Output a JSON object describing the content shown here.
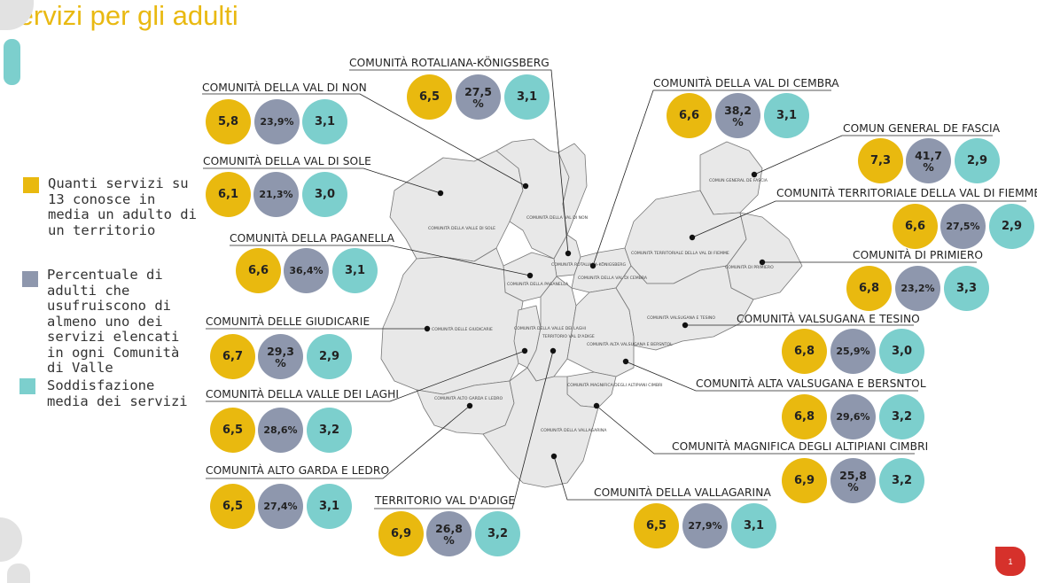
{
  "title": "Servizi per gli adulti",
  "colors": {
    "yellow": "#e9b90f",
    "grey": "#8e97ad",
    "teal": "#7ccfcd",
    "title": "#e9b911"
  },
  "legend": [
    {
      "text": "Quanti servizi su 13 conosce in media un adulto di un territorio",
      "color": "#e9b90f"
    },
    {
      "text": "Percentuale di adulti che usufruiscono di almeno uno dei servizi elencati in ogni Comunità di Valle",
      "color": "#8e97ad"
    },
    {
      "text": "Soddisfazione media dei servizi",
      "color": "#7ccfcd"
    }
  ],
  "map_labels": [
    "COMUNITÀ DELLA VALLE DI SOLE",
    "COMUNITÀ DELLA VAL DI NON",
    "COMUNITÀ ROTALIANA-KÖNIGSBERG",
    "COMUNITÀ DELLA PAGANELLA",
    "COMUNITÀ DELLA VAL DI CEMBRA",
    "COMUN GENERAL DE FASCIA",
    "COMUNITÀ TERRITORIALE DELLA VAL DI FIEMME",
    "COMUNITÀ DI PRIMIERO",
    "COMUNITÀ DELLE GIUDICARIE",
    "COMUNITÀ DELLA VALLE DEI LAGHI",
    "TERRITORIO VAL D'ADIGE",
    "COMUNITÀ ALTA VALSUGANA E BERSNTOL",
    "COMUNITÀ VALSUGANA E TESINO",
    "COMUNITÀ ALTO GARDA E LEDRO",
    "COMUNITÀ MAGNIFICA DEGLI ALTIPIANI CIMBRI",
    "COMUNITÀ DELLA VALLAGARINA"
  ],
  "communities": [
    {
      "name": "COMUNITÀ DELLA VAL DI NON",
      "known": "5,8",
      "usage": "23,9%",
      "satisfaction": "3,1"
    },
    {
      "name": "COMUNITÀ ROTALIANA-KÖNIGSBERG",
      "known": "6,5",
      "usage": "27,5 %",
      "satisfaction": "3,1"
    },
    {
      "name": "COMUNITÀ DELLA VAL DI CEMBRA",
      "known": "6,6",
      "usage": "38,2 %",
      "satisfaction": "3,1"
    },
    {
      "name": "COMUN GENERAL DE FASCIA",
      "known": "7,3",
      "usage": "41,7 %",
      "satisfaction": "2,9"
    },
    {
      "name": "COMUNITÀ DELLA VAL DI SOLE",
      "known": "6,1",
      "usage": "21,3%",
      "satisfaction": "3,0"
    },
    {
      "name": "COMUNITÀ TERRITORIALE DELLA VAL DI FIEMME",
      "known": "6,6",
      "usage": "27,5%",
      "satisfaction": "2,9"
    },
    {
      "name": "COMUNITÀ DELLA PAGANELLA",
      "known": "6,6",
      "usage": "36,4%",
      "satisfaction": "3,1"
    },
    {
      "name": "COMUNITÀ DI PRIMIERO",
      "known": "6,8",
      "usage": "23,2%",
      "satisfaction": "3,3"
    },
    {
      "name": "COMUNITÀ DELLE GIUDICARIE",
      "known": "6,7",
      "usage": "29,3 %",
      "satisfaction": "2,9"
    },
    {
      "name": "COMUNITÀ VALSUGANA E TESINO",
      "known": "6,8",
      "usage": "25,9%",
      "satisfaction": "3,0"
    },
    {
      "name": "COMUNITÀ ALTA VALSUGANA E BERSNTOL",
      "known": "6,8",
      "usage": "29,6%",
      "satisfaction": "3,2"
    },
    {
      "name": "COMUNITÀ DELLA VALLE DEI LAGHI",
      "known": "6,5",
      "usage": "28,6%",
      "satisfaction": "3,2"
    },
    {
      "name": "COMUNITÀ MAGNIFICA DEGLI ALTIPIANI CIMBRI",
      "known": "6,9",
      "usage": "25,8 %",
      "satisfaction": "3,2"
    },
    {
      "name": "COMUNITÀ ALTO GARDA E LEDRO",
      "known": "6,5",
      "usage": "27,4%",
      "satisfaction": "3,1"
    },
    {
      "name": "COMUNITÀ DELLA VALLAGARINA",
      "known": "6,5",
      "usage": "27,9%",
      "satisfaction": "3,1"
    },
    {
      "name": "TERRITORIO VAL D'ADIGE",
      "known": "6,9",
      "usage": "26,8 %",
      "satisfaction": "3,2"
    }
  ],
  "page_number": "1"
}
